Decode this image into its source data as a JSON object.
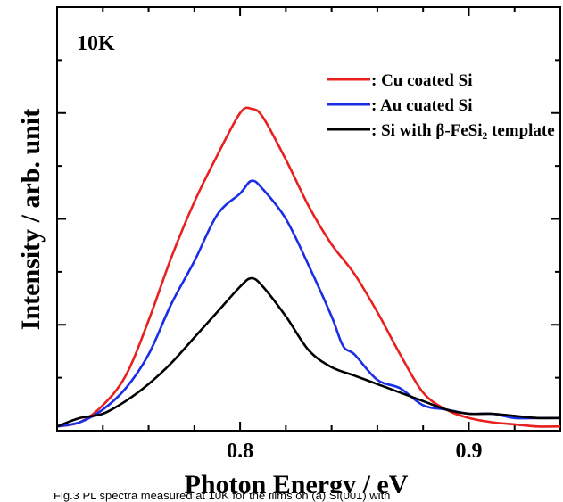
{
  "chart_data": {
    "type": "line",
    "xlabel": "Photon Energy / eV",
    "ylabel": "Intensity / arb. unit",
    "annotation": "10K",
    "xlim": [
      0.72,
      0.94
    ],
    "ylim": [
      0,
      1.0
    ],
    "x_ticks": [
      0.8,
      0.9
    ],
    "x_tick_labels": [
      "0.8",
      "0.9"
    ],
    "grid": false,
    "legend_position": "top-right",
    "series": [
      {
        "name": ": Cu coated Si",
        "color": "#e8201f",
        "x": [
          0.72,
          0.73,
          0.74,
          0.75,
          0.76,
          0.77,
          0.78,
          0.79,
          0.8,
          0.805,
          0.81,
          0.82,
          0.83,
          0.84,
          0.85,
          0.86,
          0.87,
          0.88,
          0.89,
          0.9,
          0.91,
          0.92,
          0.93,
          0.94
        ],
        "y": [
          0.01,
          0.02,
          0.06,
          0.13,
          0.26,
          0.41,
          0.54,
          0.65,
          0.75,
          0.76,
          0.74,
          0.64,
          0.53,
          0.44,
          0.37,
          0.28,
          0.18,
          0.09,
          0.05,
          0.03,
          0.02,
          0.015,
          0.01,
          0.01
        ]
      },
      {
        "name": ": Au cuated Si",
        "color": "#1a2ee6",
        "x": [
          0.72,
          0.73,
          0.74,
          0.75,
          0.76,
          0.77,
          0.78,
          0.79,
          0.8,
          0.805,
          0.81,
          0.82,
          0.83,
          0.84,
          0.845,
          0.85,
          0.86,
          0.87,
          0.88,
          0.89,
          0.9,
          0.91,
          0.92,
          0.93,
          0.94
        ],
        "y": [
          0.01,
          0.02,
          0.05,
          0.1,
          0.18,
          0.3,
          0.4,
          0.51,
          0.56,
          0.59,
          0.57,
          0.5,
          0.39,
          0.27,
          0.2,
          0.18,
          0.12,
          0.1,
          0.06,
          0.05,
          0.04,
          0.04,
          0.03,
          0.03,
          0.03
        ]
      },
      {
        "name": ": Si with β-FeSi₂ template",
        "color": "#000000",
        "x": [
          0.72,
          0.73,
          0.74,
          0.75,
          0.76,
          0.77,
          0.78,
          0.79,
          0.8,
          0.805,
          0.81,
          0.82,
          0.83,
          0.84,
          0.85,
          0.86,
          0.87,
          0.88,
          0.89,
          0.9,
          0.91,
          0.92,
          0.93,
          0.94
        ],
        "y": [
          0.01,
          0.03,
          0.04,
          0.07,
          0.11,
          0.16,
          0.22,
          0.28,
          0.34,
          0.36,
          0.34,
          0.27,
          0.19,
          0.15,
          0.13,
          0.11,
          0.09,
          0.07,
          0.05,
          0.04,
          0.04,
          0.035,
          0.03,
          0.03
        ]
      }
    ]
  },
  "caption_fragment": "Fig.3 PL spectra measured at 10K for the films on (a) Si(001) with"
}
